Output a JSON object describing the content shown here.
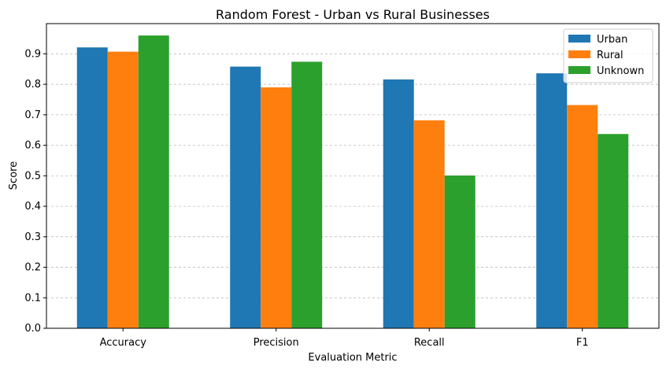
{
  "chart_data": {
    "type": "bar",
    "title": "Random Forest - Urban vs Rural Businesses",
    "xlabel": "Evaluation Metric",
    "ylabel": "Score",
    "categories": [
      "Accuracy",
      "Precision",
      "Recall",
      "F1"
    ],
    "series": [
      {
        "name": "Urban",
        "values": [
          0.921,
          0.858,
          0.816,
          0.836
        ],
        "color": "#1f77b4"
      },
      {
        "name": "Rural",
        "values": [
          0.907,
          0.79,
          0.682,
          0.732
        ],
        "color": "#ff7f0e"
      },
      {
        "name": "Unknown",
        "values": [
          0.96,
          0.874,
          0.501,
          0.637
        ],
        "color": "#2ca02c"
      }
    ],
    "ylim": [
      0,
      0.999
    ],
    "yticks": [
      "0.0",
      "0.1",
      "0.2",
      "0.3",
      "0.4",
      "0.5",
      "0.6",
      "0.7",
      "0.8",
      "0.9"
    ],
    "grid": "y-dashed",
    "legend_position": "top-right"
  }
}
